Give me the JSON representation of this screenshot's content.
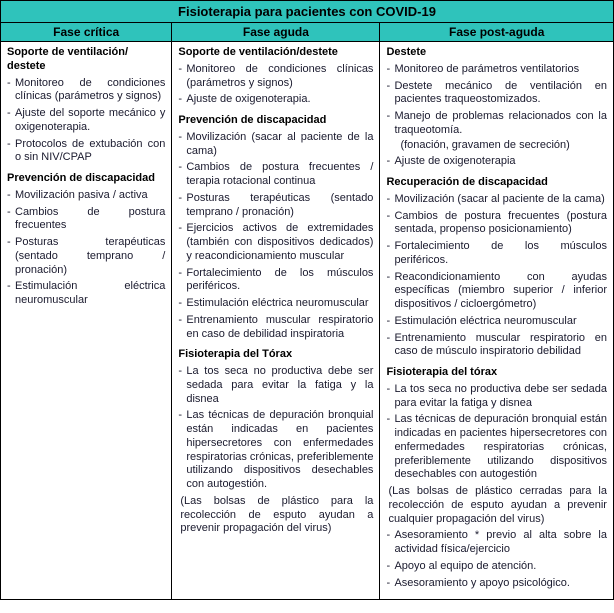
{
  "title": "Fisioterapia para pacientes con COVID-19",
  "headers": {
    "c1": "Fase crítica",
    "c2": "Fase aguda",
    "c3": "Fase post-aguda"
  },
  "col1": {
    "s1": "Soporte de ventilación/ destete",
    "i1": "Monitoreo de condiciones clínicas (parámetros y signos)",
    "i2": "Ajuste del soporte mecánico y oxigenoterapia.",
    "i3": "Protocolos de extubación con o sin NIV/CPAP",
    "s2": "Prevención de discapacidad",
    "i4": "Movilización pasiva / activa",
    "i5": "Cambios de postura frecuentes",
    "i6": "Posturas terapéuticas (sentado temprano / pronación)",
    "i7": "Estimulación eléctrica neuromuscular"
  },
  "col2": {
    "s1": "Soporte de ventilación/destete",
    "i1": "Monitoreo de condiciones clínicas (parámetros y signos)",
    "i2": "Ajuste de oxigenoterapia.",
    "s2": "Prevención de discapacidad",
    "i3": "Movilización (sacar al paciente de la cama)",
    "i4": "Cambios de postura frecuentes / terapia rotacional continua",
    "i5": "Posturas terapéuticas (sentado temprano / pronación)",
    "i6": "Ejercicios activos de extremidades (también con dispositivos dedicados) y reacondicionamiento muscular",
    "i7": "Fortalecimiento de los músculos periféricos.",
    "i8": "Estimulación eléctrica neuromuscular",
    "i9": "Entrenamiento muscular respiratorio en caso de debilidad inspiratoria",
    "s3": "Fisioterapia del Tórax",
    "i10": "La tos seca no productiva debe ser sedada para evitar la fatiga y la disnea",
    "i11": "Las técnicas de depuración bronquial están indicadas en pacientes hipersecretores con enfermedades respiratorias crónicas, preferiblemente utilizando dispositivos desechables con autogestión.",
    "p1": "(Las bolsas de plástico para la recolección de esputo ayudan a prevenir propagación del virus)"
  },
  "col3": {
    "s1": "Destete",
    "i1": "Monitoreo de parámetros ventilatorios",
    "i2": "Destete mecánico de ventilación en pacientes traqueostomizados.",
    "i3": "Manejo de problemas relacionados con la traqueotomía.",
    "p1": "(fonación, gravamen de secreción)",
    "i4": "Ajuste de oxigenoterapia",
    "s2": "Recuperación de discapacidad",
    "i5": "Movilización (sacar al paciente de la cama)",
    "i6": "Cambios de postura frecuentes (postura sentada, propenso posicionamiento)",
    "i7": "Fortalecimiento de los músculos periféricos.",
    "i8": "Reacondicionamiento con ayudas específicas (miembro superior / inferior dispositivos / cicloergómetro)",
    "i9": "Estimulación eléctrica neuromuscular",
    "i10": "Entrenamiento muscular respiratorio en caso de músculo inspiratorio debilidad",
    "s3": "Fisioterapia del tórax",
    "i11": "La tos seca no productiva debe ser sedada para evitar la fatiga y disnea",
    "i12": "Las técnicas de depuración bronquial están indicadas en pacientes hipersecretores con enfermedades respiratorias crónicas, preferiblemente utilizando dispositivos desechables con autogestión",
    "p2": "(Las bolsas de plástico cerradas para la recolección de esputo ayudan a prevenir cualquier propagación del virus)",
    "i13": "Asesoramiento * previo al alta sobre la actividad física/ejercicio",
    "i14": "Apoyo al equipo de atención.",
    "i15": "Asesoramiento y apoyo psicológico."
  }
}
